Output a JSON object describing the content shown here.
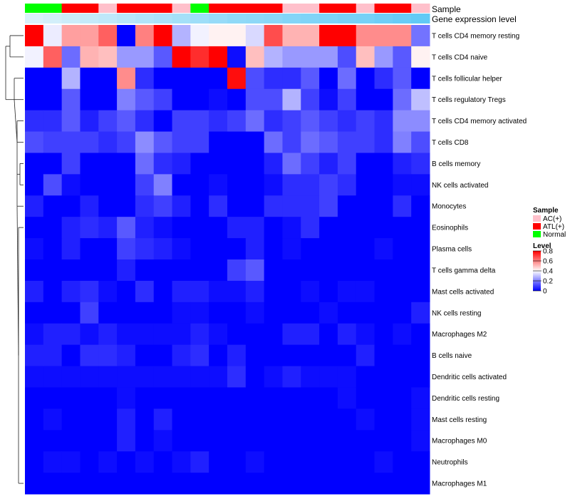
{
  "chart_data": {
    "type": "heatmap",
    "title": "",
    "column_annotations": [
      {
        "name": "Sample",
        "label": "Sample"
      },
      {
        "name": "Gene expression level",
        "label": "Gene expression level"
      }
    ],
    "sample_groups": [
      "Normal",
      "Normal",
      "ATL(+)",
      "ATL(+)",
      "AC(+)",
      "ATL(+)",
      "ATL(+)",
      "ATL(+)",
      "AC(+)",
      "Normal",
      "ATL(+)",
      "ATL(+)",
      "ATL(+)",
      "ATL(+)",
      "AC(+)",
      "AC(+)",
      "ATL(+)",
      "ATL(+)",
      "AC(+)",
      "ATL(+)",
      "ATL(+)",
      "AC(+)"
    ],
    "expression_level": [
      0.05,
      0.1,
      0.15,
      0.2,
      0.25,
      0.3,
      0.35,
      0.4,
      0.45,
      0.5,
      0.55,
      0.6,
      0.62,
      0.65,
      0.7,
      0.72,
      0.75,
      0.78,
      0.8,
      0.85,
      0.9,
      0.95
    ],
    "rows": [
      "T cells CD4 memory resting",
      "T cells CD4 naive",
      "T cells follicular helper",
      "T cells regulatory  Tregs",
      "T cells CD4 memory activated",
      "T cells CD8",
      "B cells memory",
      "NK cells activated",
      "Monocytes",
      "Eosinophils",
      "Plasma cells",
      "T cells gamma delta",
      "Mast cells activated",
      "NK cells resting",
      "Macrophages M2",
      "B cells naive",
      "Dendritic cells activated",
      "Dendritic cells resting",
      "Mast cells resting",
      "Macrophages M0",
      "Neutrophils",
      "Macrophages M1"
    ],
    "values": [
      [
        0.8,
        0.37,
        0.55,
        0.55,
        0.65,
        0.0,
        0.6,
        0.8,
        0.28,
        0.38,
        0.42,
        0.42,
        0.34,
        0.68,
        0.52,
        0.52,
        0.8,
        0.8,
        0.58,
        0.58,
        0.58,
        0.18
      ],
      [
        0.38,
        0.65,
        0.17,
        0.52,
        0.5,
        0.24,
        0.24,
        0.14,
        0.8,
        0.73,
        0.8,
        0.02,
        0.5,
        0.28,
        0.24,
        0.24,
        0.24,
        0.12,
        0.5,
        0.24,
        0.14,
        0.42
      ],
      [
        0.0,
        0.0,
        0.28,
        0.0,
        0.0,
        0.58,
        0.07,
        0.0,
        0.0,
        0.0,
        0.0,
        0.78,
        0.12,
        0.07,
        0.07,
        0.14,
        0.0,
        0.17,
        0.0,
        0.07,
        0.14,
        0.0
      ],
      [
        0.0,
        0.0,
        0.14,
        0.0,
        0.0,
        0.2,
        0.14,
        0.1,
        0.0,
        0.0,
        0.02,
        0.0,
        0.12,
        0.12,
        0.28,
        0.1,
        0.02,
        0.1,
        0.0,
        0.0,
        0.17,
        0.3
      ],
      [
        0.07,
        0.07,
        0.14,
        0.05,
        0.1,
        0.14,
        0.07,
        0.0,
        0.1,
        0.1,
        0.07,
        0.1,
        0.17,
        0.07,
        0.1,
        0.14,
        0.1,
        0.07,
        0.1,
        0.07,
        0.22,
        0.22
      ],
      [
        0.12,
        0.1,
        0.1,
        0.1,
        0.07,
        0.1,
        0.22,
        0.14,
        0.1,
        0.1,
        0.0,
        0.0,
        0.0,
        0.17,
        0.1,
        0.17,
        0.14,
        0.1,
        0.1,
        0.07,
        0.2,
        0.12
      ],
      [
        0.0,
        0.0,
        0.1,
        0.0,
        0.0,
        0.0,
        0.17,
        0.07,
        0.05,
        0.0,
        0.0,
        0.0,
        0.0,
        0.05,
        0.17,
        0.1,
        0.05,
        0.1,
        0.0,
        0.0,
        0.05,
        0.07
      ],
      [
        0.0,
        0.12,
        0.02,
        0.0,
        0.0,
        0.0,
        0.1,
        0.2,
        0.0,
        0.0,
        0.02,
        0.0,
        0.0,
        0.02,
        0.07,
        0.07,
        0.1,
        0.07,
        0.0,
        0.0,
        0.02,
        0.02
      ],
      [
        0.05,
        0.0,
        0.0,
        0.05,
        0.0,
        0.0,
        0.07,
        0.1,
        0.05,
        0.0,
        0.07,
        0.0,
        0.0,
        0.07,
        0.07,
        0.07,
        0.1,
        0.0,
        0.0,
        0.0,
        0.07,
        0.0
      ],
      [
        0.0,
        0.0,
        0.05,
        0.07,
        0.05,
        0.14,
        0.05,
        0.02,
        0.0,
        0.0,
        0.0,
        0.05,
        0.05,
        0.0,
        0.02,
        0.07,
        0.0,
        0.0,
        0.0,
        0.0,
        0.0,
        0.0
      ],
      [
        0.02,
        0.0,
        0.05,
        0.0,
        0.0,
        0.1,
        0.07,
        0.05,
        0.02,
        0.0,
        0.0,
        0.0,
        0.05,
        0.0,
        0.02,
        0.0,
        0.0,
        0.0,
        0.0,
        0.02,
        0.0,
        0.0
      ],
      [
        0.0,
        0.0,
        0.0,
        0.0,
        0.0,
        0.05,
        0.0,
        0.0,
        0.0,
        0.0,
        0.0,
        0.1,
        0.14,
        0.0,
        0.0,
        0.0,
        0.0,
        0.0,
        0.0,
        0.0,
        0.0,
        0.0
      ],
      [
        0.05,
        0.0,
        0.05,
        0.07,
        0.02,
        0.0,
        0.07,
        0.0,
        0.05,
        0.05,
        0.02,
        0.02,
        0.05,
        0.0,
        0.0,
        0.02,
        0.0,
        0.02,
        0.02,
        0.0,
        0.0,
        0.0
      ],
      [
        0.0,
        0.0,
        0.0,
        0.1,
        0.0,
        0.0,
        0.0,
        0.0,
        0.02,
        0.02,
        0.0,
        0.0,
        0.02,
        0.0,
        0.0,
        0.0,
        0.02,
        0.0,
        0.0,
        0.0,
        0.0,
        0.05
      ],
      [
        0.02,
        0.05,
        0.05,
        0.02,
        0.05,
        0.02,
        0.02,
        0.02,
        0.02,
        0.05,
        0.02,
        0.0,
        0.0,
        0.0,
        0.05,
        0.05,
        0.0,
        0.05,
        0.02,
        0.0,
        0.02,
        0.0
      ],
      [
        0.05,
        0.05,
        0.0,
        0.07,
        0.07,
        0.05,
        0.0,
        0.0,
        0.05,
        0.07,
        0.0,
        0.05,
        0.0,
        0.0,
        0.0,
        0.0,
        0.0,
        0.0,
        0.05,
        0.0,
        0.0,
        0.0
      ],
      [
        0.02,
        0.02,
        0.02,
        0.02,
        0.02,
        0.02,
        0.02,
        0.02,
        0.02,
        0.02,
        0.02,
        0.07,
        0.0,
        0.02,
        0.05,
        0.02,
        0.02,
        0.02,
        0.0,
        0.0,
        0.0,
        0.0
      ],
      [
        0.0,
        0.0,
        0.0,
        0.0,
        0.0,
        0.02,
        0.0,
        0.0,
        0.0,
        0.0,
        0.0,
        0.0,
        0.0,
        0.0,
        0.0,
        0.0,
        0.0,
        0.02,
        0.0,
        0.0,
        0.0,
        0.02
      ],
      [
        0.0,
        0.02,
        0.0,
        0.0,
        0.0,
        0.05,
        0.0,
        0.05,
        0.0,
        0.0,
        0.0,
        0.0,
        0.0,
        0.0,
        0.0,
        0.0,
        0.0,
        0.0,
        0.02,
        0.0,
        0.0,
        0.02
      ],
      [
        0.0,
        0.0,
        0.0,
        0.0,
        0.0,
        0.05,
        0.0,
        0.02,
        0.0,
        0.0,
        0.0,
        0.0,
        0.0,
        0.0,
        0.0,
        0.0,
        0.0,
        0.0,
        0.0,
        0.0,
        0.0,
        0.02
      ],
      [
        0.0,
        0.02,
        0.02,
        0.0,
        0.02,
        0.0,
        0.02,
        0.0,
        0.02,
        0.05,
        0.0,
        0.0,
        0.02,
        0.0,
        0.0,
        0.0,
        0.0,
        0.0,
        0.0,
        0.02,
        0.0,
        0.0
      ],
      [
        0.0,
        0.0,
        0.0,
        0.0,
        0.0,
        0.0,
        0.0,
        0.0,
        0.0,
        0.0,
        0.0,
        0.0,
        0.0,
        0.0,
        0.0,
        0.0,
        0.0,
        0.0,
        0.0,
        0.0,
        0.0,
        0.0
      ]
    ],
    "row_dendrogram": true,
    "legend": {
      "sample": {
        "title": "Sample",
        "entries": [
          {
            "label": "AC(+)",
            "color": "#ffc0cb"
          },
          {
            "label": "ATL(+)",
            "color": "#ff0000"
          },
          {
            "label": "Normal",
            "color": "#00ff00"
          }
        ]
      },
      "level": {
        "title": "Level",
        "range": [
          0,
          0.8
        ],
        "ticks": [
          0.8,
          0.6,
          0.4,
          0.2,
          0
        ],
        "tick_labels": [
          "0.8",
          "0.6",
          "0.4",
          "0.2",
          "0"
        ]
      },
      "placement": "right"
    },
    "colors": {
      "low": "#0000ff",
      "mid": "#ffffff",
      "high": "#ff0000",
      "expression_light": "#e0f3fb",
      "expression_dark": "#5bc8f5"
    }
  }
}
